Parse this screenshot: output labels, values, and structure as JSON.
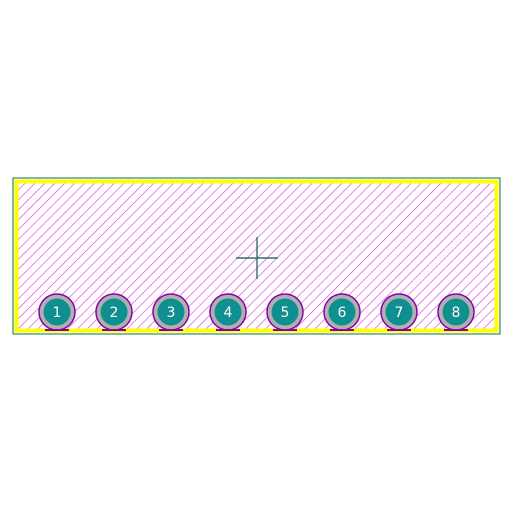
{
  "footprint": {
    "pins": [
      {
        "number": "1"
      },
      {
        "number": "2"
      },
      {
        "number": "3"
      },
      {
        "number": "4"
      },
      {
        "number": "5"
      },
      {
        "number": "6"
      },
      {
        "number": "7"
      },
      {
        "number": "8"
      }
    ]
  },
  "colors": {
    "background": "#ffffff",
    "board_outline": "#2e8b57",
    "silkscreen": "#ffff00",
    "hatch": "#dd33dd",
    "pad_ring": "#b0b0b0",
    "pad_ring_outline": "#8800aa",
    "pad_copper": "#0f8f8f",
    "pad_text": "#ffffff",
    "origin_marker": "#2f6f6f"
  }
}
